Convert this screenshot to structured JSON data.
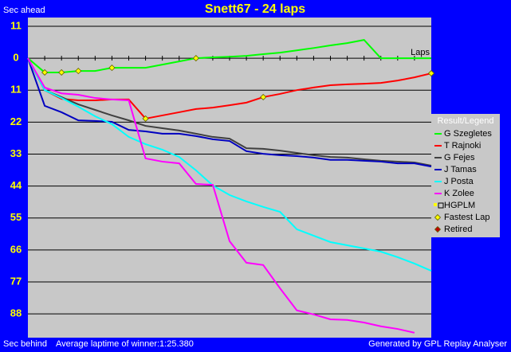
{
  "chart_data": {
    "type": "line",
    "title": "Snett67 - 24 laps",
    "y_label_top": "Sec ahead",
    "y_label_bottom": "Sec behind",
    "x_label": "Laps",
    "footer_left": "Average laptime of winner:1:25.380",
    "footer_right": "Generated by GPL Replay Analyser",
    "legend_title": "Result/Legend",
    "xlim": [
      0,
      24
    ],
    "xticks": [
      1,
      2,
      3,
      4,
      5,
      6,
      7,
      8,
      9,
      10,
      11,
      12,
      13,
      14,
      15,
      16,
      17,
      18,
      19,
      20,
      21,
      22,
      23
    ],
    "ylim": [
      -14,
      96.2
    ],
    "yticks": [
      {
        "value": -11,
        "label": "11"
      },
      0,
      11,
      22,
      33,
      44,
      55,
      66,
      77,
      88
    ],
    "grid": true,
    "x": [
      0,
      1,
      2,
      3,
      4,
      5,
      6,
      7,
      8,
      9,
      10,
      11,
      12,
      13,
      14,
      15,
      16,
      17,
      18,
      19,
      20,
      21,
      22,
      23,
      24
    ],
    "series": [
      {
        "name": "G Szegletes",
        "color": "#00ff00",
        "values": [
          0,
          4.9,
          4.9,
          4.4,
          4.4,
          3.3,
          3.3,
          3.3,
          2.2,
          1.1,
          0,
          -0.3,
          -0.5,
          -0.8,
          -1.4,
          -1.9,
          -2.7,
          -3.5,
          -4.4,
          -5.2,
          -6.3,
          0,
          0,
          0,
          0
        ],
        "fastest_laps": [
          1,
          2,
          3,
          5,
          10
        ]
      },
      {
        "name": "T Rajnoki",
        "color": "#ff0000",
        "values": [
          0,
          11,
          14,
          14.5,
          14.5,
          14.2,
          14.2,
          20.8,
          19.7,
          18.6,
          17.5,
          17,
          16.2,
          15.3,
          13.4,
          12.3,
          11,
          10.1,
          9.3,
          9,
          8.8,
          8.5,
          7.7,
          6.6,
          5.2
        ],
        "fastest_laps": [
          7,
          14,
          24
        ]
      },
      {
        "name": "G Fejes",
        "color": "#404040",
        "values": [
          0,
          11,
          13.4,
          15.9,
          17.8,
          19.7,
          21.4,
          23.3,
          24.1,
          24.9,
          26,
          27.1,
          27.7,
          31,
          31.2,
          31.8,
          32.6,
          33.4,
          34,
          34.2,
          34.8,
          35.3,
          35.6,
          35.9,
          37
        ]
      },
      {
        "name": "J Tamas",
        "color": "#0000c0",
        "values": [
          0,
          16.4,
          18.6,
          21.4,
          21.6,
          21.9,
          24.7,
          25.2,
          26,
          26,
          26.8,
          27.9,
          28.5,
          32,
          32.9,
          33.4,
          33.7,
          34.2,
          35,
          35,
          35.3,
          35.6,
          36.2,
          36.2,
          37.3
        ]
      },
      {
        "name": "J Posta",
        "color": "#00ffff",
        "values": [
          0,
          11,
          13.7,
          16.7,
          20,
          22.7,
          27.1,
          29.6,
          31.5,
          34,
          38.6,
          43.8,
          47.1,
          49.3,
          51.2,
          52.9,
          58.9,
          61.1,
          63.3,
          64.4,
          65.5,
          66.6,
          68.5,
          70.7,
          73.2
        ]
      },
      {
        "name": "K Zolee",
        "color": "#ff00ff",
        "values": [
          0,
          10.1,
          12.1,
          12.6,
          13.7,
          14.2,
          14.5,
          34.5,
          35.6,
          36.2,
          43.3,
          43.6,
          63,
          70.4,
          71.2,
          79.2,
          86.8,
          88.2,
          89.9,
          90.1,
          91,
          92.3,
          93.2,
          94.5,
          null
        ]
      }
    ],
    "legend_extras": [
      {
        "name": "HGPLM",
        "color": "#ffff00",
        "marker": "square"
      },
      {
        "name": "Fastest Lap",
        "color": "#ffff00",
        "marker": "diamond"
      },
      {
        "name": "Retired",
        "color": "#c00000",
        "marker": "diamond"
      }
    ]
  }
}
